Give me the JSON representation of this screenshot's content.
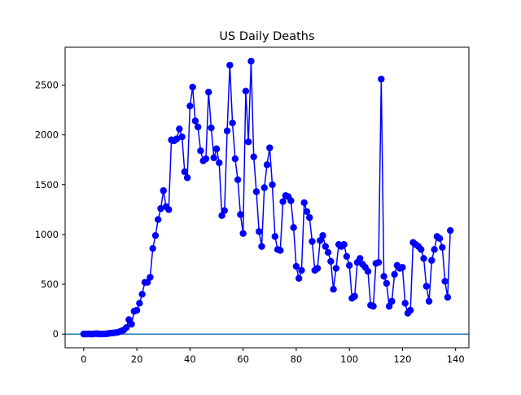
{
  "chart_data": {
    "type": "line",
    "title": "US Daily Deaths",
    "xlabel": "",
    "ylabel": "",
    "xlim": [
      -7,
      145
    ],
    "ylim": [
      -137,
      2880
    ],
    "xticks": [
      0,
      20,
      40,
      60,
      80,
      100,
      120,
      140
    ],
    "yticks": [
      0,
      500,
      1000,
      1500,
      2000,
      2500
    ],
    "grid": false,
    "legend": "none",
    "baseline": 0,
    "colors": {
      "series": "#0000ff",
      "baseline": "#1f77b4",
      "axes": "#000000"
    },
    "series": [
      {
        "marker": "circle",
        "x": [
          0,
          1,
          2,
          3,
          4,
          5,
          6,
          7,
          8,
          9,
          10,
          11,
          12,
          13,
          14,
          15,
          16,
          17,
          18,
          19,
          20,
          21,
          22,
          23,
          24,
          25,
          26,
          27,
          28,
          29,
          30,
          31,
          32,
          33,
          34,
          35,
          36,
          37,
          38,
          39,
          40,
          41,
          42,
          43,
          44,
          45,
          46,
          47,
          48,
          49,
          50,
          51,
          52,
          53,
          54,
          55,
          56,
          57,
          58,
          59,
          60,
          61,
          62,
          63,
          64,
          65,
          66,
          67,
          68,
          69,
          70,
          71,
          72,
          73,
          74,
          75,
          76,
          77,
          78,
          79,
          80,
          81,
          82,
          83,
          84,
          85,
          86,
          87,
          88,
          89,
          90,
          91,
          92,
          93,
          94,
          95,
          96,
          97,
          98,
          99,
          100,
          101,
          102,
          103,
          104,
          105,
          106,
          107,
          108,
          109,
          110,
          111,
          112,
          113,
          114,
          115,
          116,
          117,
          118,
          119,
          120,
          121,
          122,
          123,
          124,
          125,
          126,
          127,
          128,
          129,
          130,
          131,
          132,
          133,
          134,
          135,
          136,
          137,
          138
        ],
        "values": [
          1,
          1,
          2,
          0,
          3,
          4,
          1,
          1,
          2,
          5,
          10,
          12,
          15,
          20,
          30,
          40,
          65,
          145,
          100,
          230,
          240,
          310,
          400,
          520,
          520,
          570,
          860,
          990,
          1150,
          1260,
          1440,
          1280,
          1250,
          1950,
          1940,
          1960,
          2060,
          1980,
          1630,
          1570,
          2290,
          2480,
          2140,
          2080,
          1840,
          1740,
          1760,
          2430,
          2070,
          1770,
          1860,
          1720,
          1190,
          1240,
          2040,
          2700,
          2120,
          1760,
          1550,
          1200,
          1010,
          2440,
          1930,
          2740,
          1780,
          1430,
          1030,
          880,
          1470,
          1700,
          1870,
          1500,
          980,
          850,
          840,
          1330,
          1390,
          1380,
          1340,
          1070,
          680,
          560,
          640,
          1320,
          1230,
          1170,
          930,
          640,
          660,
          940,
          990,
          880,
          820,
          730,
          450,
          660,
          900,
          880,
          900,
          780,
          690,
          360,
          380,
          720,
          760,
          700,
          670,
          630,
          290,
          280,
          710,
          720,
          2560,
          580,
          510,
          280,
          330,
          600,
          690,
          660,
          670,
          310,
          210,
          240,
          920,
          900,
          880,
          850,
          760,
          480,
          330,
          740,
          850,
          980,
          960,
          870,
          530,
          370,
          1040
        ]
      }
    ]
  }
}
